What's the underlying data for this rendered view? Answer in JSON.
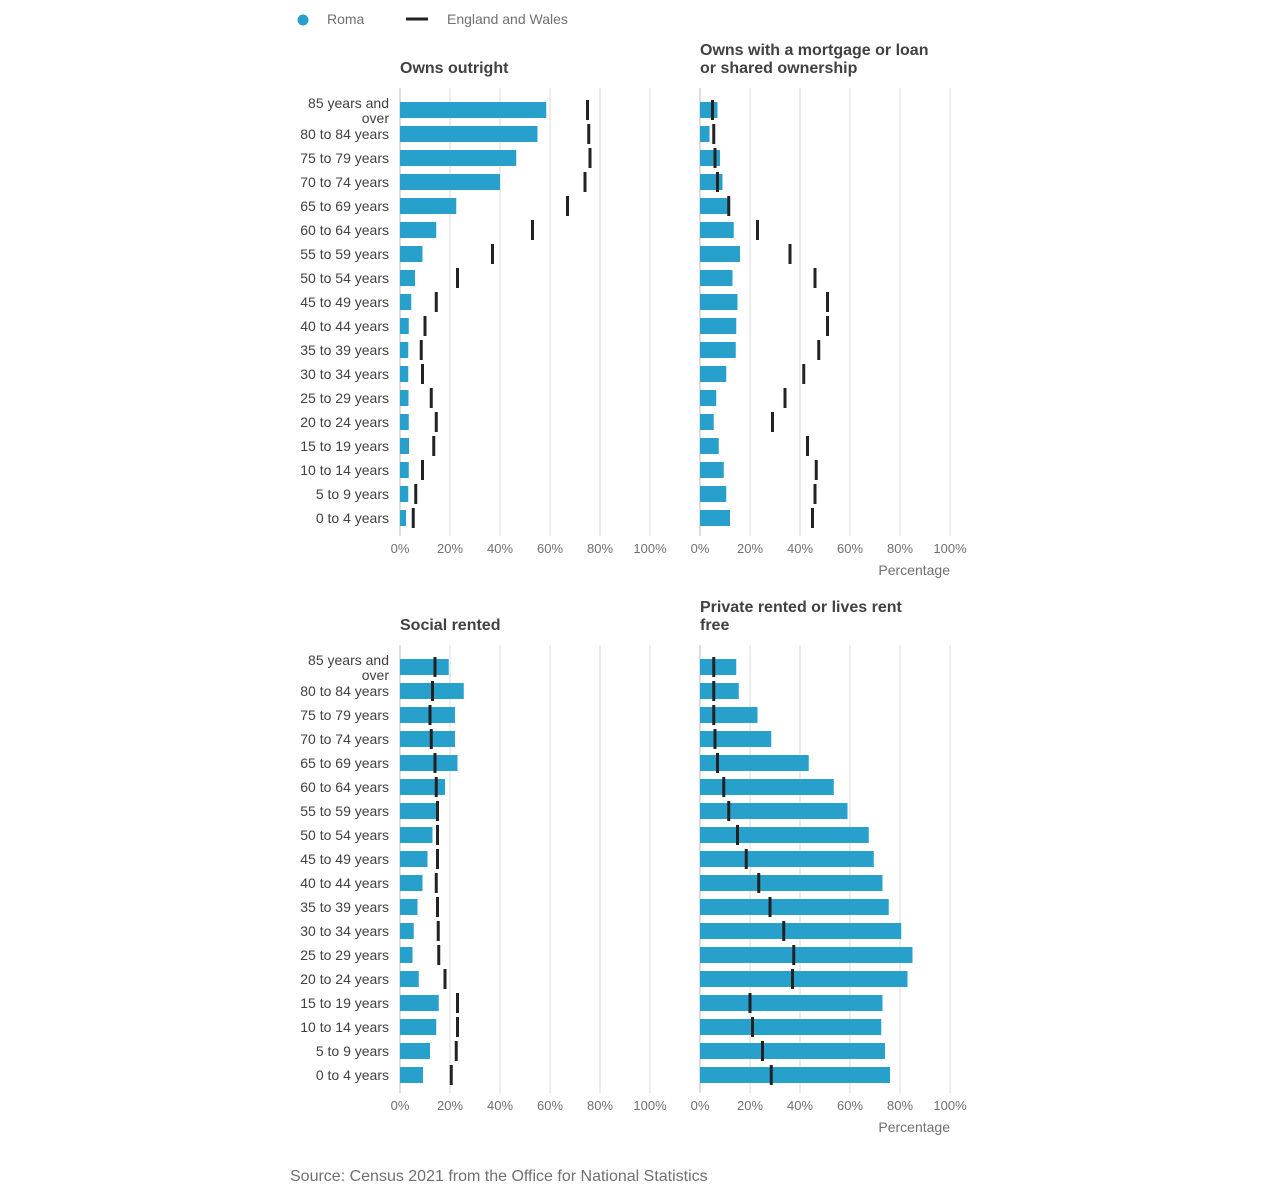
{
  "legend": {
    "items": [
      {
        "label": "Roma",
        "symbol": "dot",
        "color": "#27a0cc"
      },
      {
        "label": "England and Wales",
        "symbol": "line",
        "color": "#222222"
      }
    ]
  },
  "source": "Source: Census 2021 from the Office for National Statistics",
  "colors": {
    "roma": "#27a0cc",
    "england_wales": "#222222",
    "grid": "#d9d9d9",
    "text": "#414042"
  },
  "chart_data": {
    "type": "bar",
    "orientation": "horizontal",
    "categories": [
      "85 years and over",
      "80 to 84 years",
      "75 to 79 years",
      "70 to 74 years",
      "65 to 69 years",
      "60 to 64 years",
      "55 to 59 years",
      "50 to 54 years",
      "45 to 49 years",
      "40 to 44 years",
      "35 to 39 years",
      "30 to 34 years",
      "25 to 29 years",
      "20 to 24 years",
      "15 to 19 years",
      "10 to 14 years",
      "5 to 9 years",
      "0 to 4 years"
    ],
    "xlim": [
      0,
      100
    ],
    "x_ticks": [
      "0%",
      "20%",
      "40%",
      "60%",
      "80%",
      "100%"
    ],
    "xlabel": "Percentage",
    "grid": true,
    "legend_position": "top-left",
    "panels": [
      {
        "title": "Owns outright",
        "series": [
          {
            "name": "Roma",
            "type": "bar",
            "values": [
              58.5,
              55,
              46.5,
              40,
              22.5,
              14.5,
              9,
              6,
              4.5,
              3.5,
              3.3,
              3.3,
              3.4,
              3.5,
              3.6,
              3.5,
              3.3,
              2.4
            ]
          },
          {
            "name": "England and Wales",
            "type": "marker",
            "values": [
              75,
              75.5,
              76,
              74,
              67,
              53,
              37,
              23,
              14.5,
              10,
              8.5,
              9,
              12.5,
              14.5,
              13.5,
              9,
              6.3,
              5.3
            ]
          }
        ]
      },
      {
        "title": "Owns with a mortgage or loan or shared ownership",
        "series": [
          {
            "name": "Roma",
            "type": "bar",
            "values": [
              7,
              3.8,
              8,
              9,
              11,
              13.5,
              16,
              13,
              15,
              14.5,
              14.3,
              10.5,
              6.5,
              5.5,
              7.5,
              9.5,
              10.5,
              12
            ]
          },
          {
            "name": "England and Wales",
            "type": "marker",
            "values": [
              5,
              5.5,
              6,
              7,
              11.5,
              23,
              36,
              46,
              51,
              51,
              47.5,
              41.5,
              34,
              29,
              43,
              46.5,
              46,
              45
            ]
          }
        ]
      },
      {
        "title": "Social rented",
        "series": [
          {
            "name": "Roma",
            "type": "bar",
            "values": [
              19.5,
              25.5,
              22,
              22,
              23,
              18,
              15.5,
              13,
              11,
              9,
              7,
              5.5,
              5,
              7.5,
              15.5,
              14.5,
              12,
              9.2
            ]
          },
          {
            "name": "England and Wales",
            "type": "marker",
            "values": [
              14,
              13,
              12,
              12.5,
              14,
              14.5,
              15,
              15,
              15,
              14.5,
              15,
              15.3,
              15.5,
              18,
              23,
              23,
              22.5,
              20.5
            ]
          }
        ]
      },
      {
        "title": "Private rented or lives rent free",
        "series": [
          {
            "name": "Roma",
            "type": "bar",
            "values": [
              14.5,
              15.5,
              23,
              28.5,
              43.5,
              53.5,
              59,
              67.5,
              69.5,
              73,
              75.5,
              80.5,
              85,
              83,
              73,
              72.5,
              74,
              76
            ]
          },
          {
            "name": "England and Wales",
            "type": "marker",
            "values": [
              5.5,
              5.5,
              5.5,
              6,
              7,
              9.5,
              11.5,
              15,
              18.5,
              23.5,
              28,
              33.5,
              37.5,
              37,
              20,
              21,
              25,
              28.5
            ]
          }
        ]
      }
    ]
  }
}
